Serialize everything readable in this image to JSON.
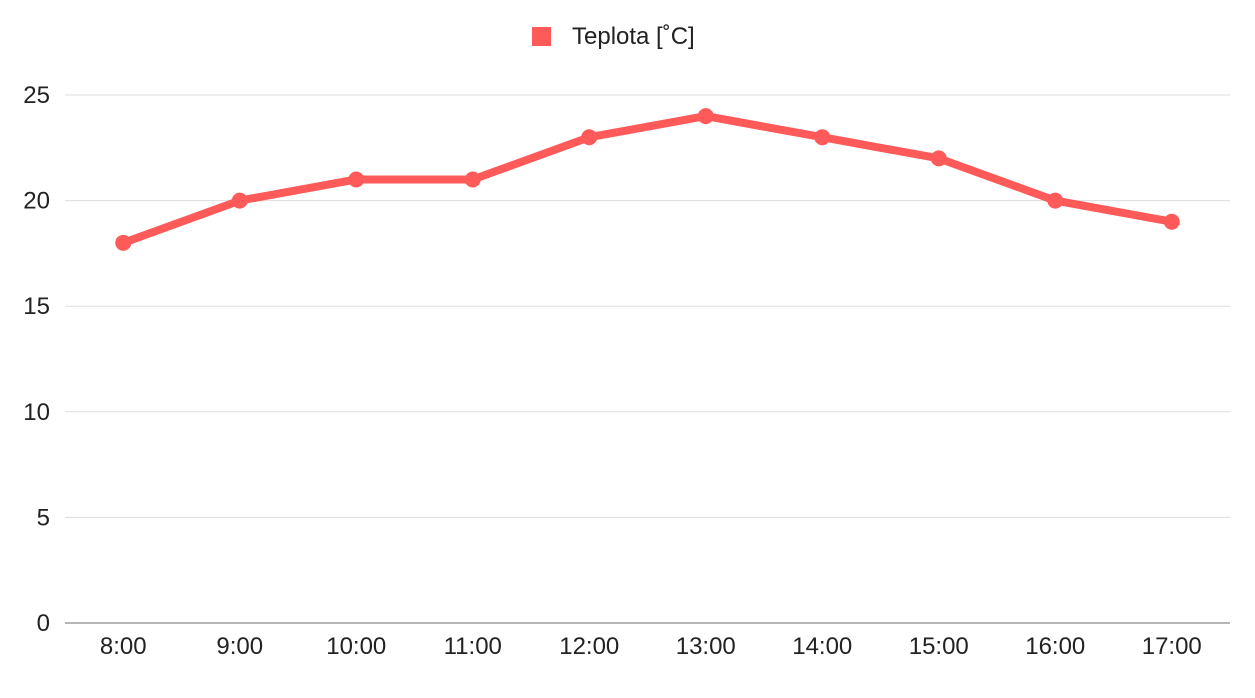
{
  "chart_data": {
    "type": "line",
    "title": "",
    "xlabel": "",
    "ylabel": "",
    "categories": [
      "8:00",
      "9:00",
      "10:00",
      "11:00",
      "12:00",
      "13:00",
      "14:00",
      "15:00",
      "16:00",
      "17:00"
    ],
    "series": [
      {
        "name": "Teplota [˚C]",
        "values": [
          18,
          20,
          21,
          21,
          23,
          24,
          23,
          22,
          20,
          19
        ],
        "color": "#ff5a5a"
      }
    ],
    "ylim": [
      0,
      25
    ],
    "yticks": [
      0,
      5,
      10,
      15,
      20,
      25
    ],
    "grid": true,
    "legend_position": "top-center",
    "gridline_color": "#dddddd",
    "axis_color": "#9e9e9e"
  }
}
